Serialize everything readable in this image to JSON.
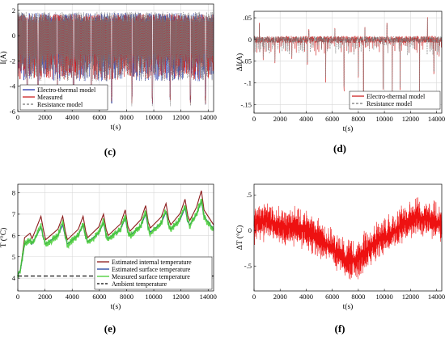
{
  "figure": {
    "panels": [
      {
        "id": "c",
        "label": "(c)"
      },
      {
        "id": "d",
        "label": "(d)"
      },
      {
        "id": "e",
        "label": "(e)"
      },
      {
        "id": "f",
        "label": "(f)"
      }
    ]
  },
  "chart_data": [
    {
      "panel": "c",
      "type": "line",
      "xlabel": "t(s)",
      "ylabel": "I(A)",
      "xlim": [
        0,
        14400
      ],
      "ylim": [
        -6,
        2.5
      ],
      "xticks": [
        0,
        2000,
        4000,
        6000,
        8000,
        10000,
        12000,
        14000
      ],
      "yticks": [
        -6,
        -4,
        -2,
        0,
        2
      ],
      "grid": true,
      "legend_position": "bottom-left",
      "series": [
        {
          "name": "Electro-thermal model",
          "color": "#2233aa",
          "style": "solid",
          "signal": {
            "base": 0.1,
            "band_low": -3.6,
            "band_high": 1.8,
            "spikes_at": [
              700,
              1500,
              2900,
              4100,
              5400,
              6900,
              8400,
              9900,
              11200,
              12700,
              13800
            ],
            "spike_depth": -5.5
          }
        },
        {
          "name": "Measured",
          "color": "#cc2222",
          "style": "solid",
          "signal": {
            "base": 0.1,
            "band_low": -3.5,
            "band_high": 1.7,
            "spikes_at": [
              700,
              1500,
              2900,
              4100,
              5400,
              6900,
              8400,
              9900,
              11200,
              12700,
              13800
            ],
            "spike_depth": -5.4
          }
        },
        {
          "name": "Resistance model",
          "color": "#777777",
          "style": "dashed",
          "signal": {
            "base": 0.1,
            "band_low": -3.6,
            "band_high": 1.9,
            "spikes_at": [
              700,
              1500,
              2900,
              4100,
              5400,
              6900,
              8400,
              9900,
              11200,
              12700,
              13800
            ],
            "spike_depth": -5.6
          }
        }
      ]
    },
    {
      "panel": "d",
      "type": "line",
      "xlabel": "t(s)",
      "ylabel": "ΔI(A)",
      "xlim": [
        0,
        14400
      ],
      "ylim": [
        -0.17,
        0.065
      ],
      "xticks": [
        0,
        2000,
        4000,
        6000,
        8000,
        10000,
        12000,
        14000
      ],
      "yticks": [
        -0.15,
        -0.1,
        -0.05,
        0,
        0.05
      ],
      "grid": true,
      "legend_position": "bottom-right",
      "series": [
        {
          "name": "Electro-thermal model",
          "color": "#cc2222",
          "style": "solid",
          "signal": {
            "base": 0.0,
            "noise": 0.008,
            "neg_spikes": [
              [
                700,
                -0.05
              ],
              [
                1600,
                -0.055
              ],
              [
                2900,
                -0.045
              ],
              [
                4100,
                -0.06
              ],
              [
                5500,
                -0.1
              ],
              [
                6900,
                -0.12
              ],
              [
                8000,
                -0.09
              ],
              [
                8400,
                -0.145
              ],
              [
                9900,
                -0.12
              ],
              [
                10600,
                -0.14
              ],
              [
                11200,
                -0.125
              ],
              [
                12700,
                -0.13
              ],
              [
                13800,
                -0.08
              ],
              [
                14200,
                -0.04
              ]
            ],
            "pos_spikes": [
              [
                400,
                0.04
              ],
              [
                4200,
                0.025
              ],
              [
                6200,
                0.028
              ],
              [
                8500,
                0.03
              ],
              [
                10200,
                0.04
              ],
              [
                13300,
                0.052
              ]
            ]
          }
        },
        {
          "name": "Resistance model",
          "color": "#777777",
          "style": "dashed",
          "signal": {
            "base": 0.0,
            "noise": 0.007,
            "neg_spikes": [
              [
                700,
                -0.045
              ],
              [
                1600,
                -0.05
              ],
              [
                2900,
                -0.04
              ],
              [
                4100,
                -0.055
              ],
              [
                5500,
                -0.095
              ],
              [
                6900,
                -0.115
              ],
              [
                8000,
                -0.085
              ],
              [
                8400,
                -0.14
              ],
              [
                9900,
                -0.115
              ],
              [
                10600,
                -0.135
              ],
              [
                11200,
                -0.12
              ],
              [
                12700,
                -0.125
              ],
              [
                13800,
                -0.075
              ],
              [
                14200,
                -0.035
              ]
            ],
            "pos_spikes": [
              [
                400,
                0.035
              ],
              [
                4200,
                0.022
              ],
              [
                6200,
                0.025
              ],
              [
                8500,
                0.027
              ],
              [
                10200,
                0.037
              ],
              [
                13300,
                0.048
              ]
            ]
          }
        }
      ]
    },
    {
      "panel": "e",
      "type": "line",
      "xlabel": "t(s)",
      "ylabel": "T (°C)",
      "xlim": [
        0,
        14400
      ],
      "ylim": [
        3.4,
        8.4
      ],
      "xticks": [
        0,
        2000,
        4000,
        6000,
        8000,
        10000,
        12000,
        14000
      ],
      "yticks": [
        4,
        5,
        6,
        7,
        8
      ],
      "grid": true,
      "legend_position": "bottom-right",
      "series": [
        {
          "name": "Estimated internal temperature",
          "color": "#8b1a1a",
          "style": "solid",
          "peaks": [
            [
              1700,
              6.9
            ],
            [
              3300,
              6.9
            ],
            [
              4800,
              6.9
            ],
            [
              6300,
              7.0
            ],
            [
              7900,
              7.2
            ],
            [
              9400,
              7.4
            ],
            [
              10900,
              7.5
            ],
            [
              12300,
              7.7
            ],
            [
              13500,
              8.1
            ]
          ],
          "start": 4.1,
          "rise_to": 6.1,
          "floor": [
            5.85,
            5.8,
            5.8,
            5.9,
            6.0,
            6.2,
            6.35,
            6.5,
            6.7
          ]
        },
        {
          "name": "Estimated surface temperature",
          "color": "#1f3f9f",
          "style": "solid",
          "peaks": [
            [
              1700,
              6.4
            ],
            [
              3300,
              6.5
            ],
            [
              4800,
              6.5
            ],
            [
              6300,
              6.6
            ],
            [
              7900,
              6.8
            ],
            [
              9400,
              7.0
            ],
            [
              10900,
              7.1
            ],
            [
              12300,
              7.3
            ],
            [
              13500,
              7.6
            ]
          ],
          "start": 4.1,
          "rise_to": 5.8,
          "floor": [
            5.6,
            5.6,
            5.6,
            5.7,
            5.85,
            6.0,
            6.15,
            6.3,
            6.5
          ]
        },
        {
          "name": "Measured surface temperature",
          "color": "#44cc33",
          "style": "noisy",
          "peaks": [
            [
              1700,
              6.5
            ],
            [
              3300,
              6.6
            ],
            [
              4800,
              6.6
            ],
            [
              6300,
              6.7
            ],
            [
              7900,
              6.9
            ],
            [
              9400,
              7.1
            ],
            [
              10900,
              7.2
            ],
            [
              12300,
              7.4
            ],
            [
              13500,
              7.7
            ]
          ],
          "start": 4.1,
          "rise_to": 5.8,
          "floor": [
            5.55,
            5.55,
            5.55,
            5.65,
            5.8,
            5.95,
            6.1,
            6.25,
            6.45
          ]
        },
        {
          "name": "Ambient temperature",
          "color": "#000000",
          "style": "dashed",
          "constant": 4.1
        }
      ]
    },
    {
      "panel": "f",
      "type": "line",
      "xlabel": "t(s)",
      "ylabel": "ΔT (°C)",
      "xlim": [
        0,
        14400
      ],
      "ylim": [
        -0.85,
        0.65
      ],
      "xticks": [
        0,
        2000,
        4000,
        6000,
        8000,
        10000,
        12000,
        14000
      ],
      "yticks": [
        -0.5,
        0,
        0.5
      ],
      "grid": false,
      "series": [
        {
          "name": "",
          "color": "#ee1111",
          "style": "noisy",
          "trend": [
            [
              0,
              0.1
            ],
            [
              1000,
              0.15
            ],
            [
              2000,
              0.05
            ],
            [
              3000,
              0.05
            ],
            [
              4000,
              0.0
            ],
            [
              5000,
              -0.1
            ],
            [
              6000,
              -0.25
            ],
            [
              7000,
              -0.4
            ],
            [
              7800,
              -0.45
            ],
            [
              8500,
              -0.3
            ],
            [
              9500,
              -0.15
            ],
            [
              10500,
              -0.05
            ],
            [
              11500,
              0.1
            ],
            [
              12500,
              0.2
            ],
            [
              13500,
              0.15
            ],
            [
              14200,
              0.1
            ]
          ],
          "noise": 0.16
        }
      ]
    }
  ]
}
